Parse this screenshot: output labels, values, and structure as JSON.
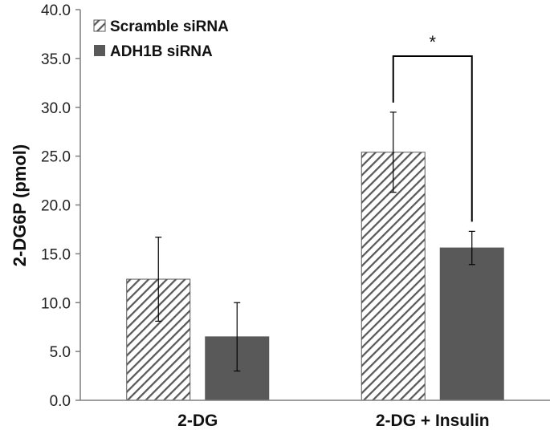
{
  "chart_data": {
    "type": "bar",
    "title": "",
    "xlabel": "",
    "ylabel": "2-DG6P (pmol)",
    "ylim": [
      0,
      40
    ],
    "yticks": [
      "0.0",
      "5.0",
      "10.0",
      "15.0",
      "20.0",
      "25.0",
      "30.0",
      "35.0",
      "40.0"
    ],
    "categories": [
      "2-DG",
      "2-DG + Insulin"
    ],
    "series": [
      {
        "name": "Scramble siRNA",
        "pattern": "hatched",
        "color": "#595959",
        "values": [
          12.4,
          25.4
        ],
        "errors": [
          4.3,
          4.1
        ]
      },
      {
        "name": "ADH1B siRNA",
        "pattern": "solid",
        "color": "#595959",
        "values": [
          6.5,
          15.6
        ],
        "errors": [
          3.5,
          1.7
        ]
      }
    ],
    "legend_position": "top-left",
    "grid": false,
    "annotations": [
      {
        "text": "*",
        "category": "2-DG + Insulin",
        "between": [
          "Scramble siRNA",
          "ADH1B siRNA"
        ]
      }
    ]
  }
}
